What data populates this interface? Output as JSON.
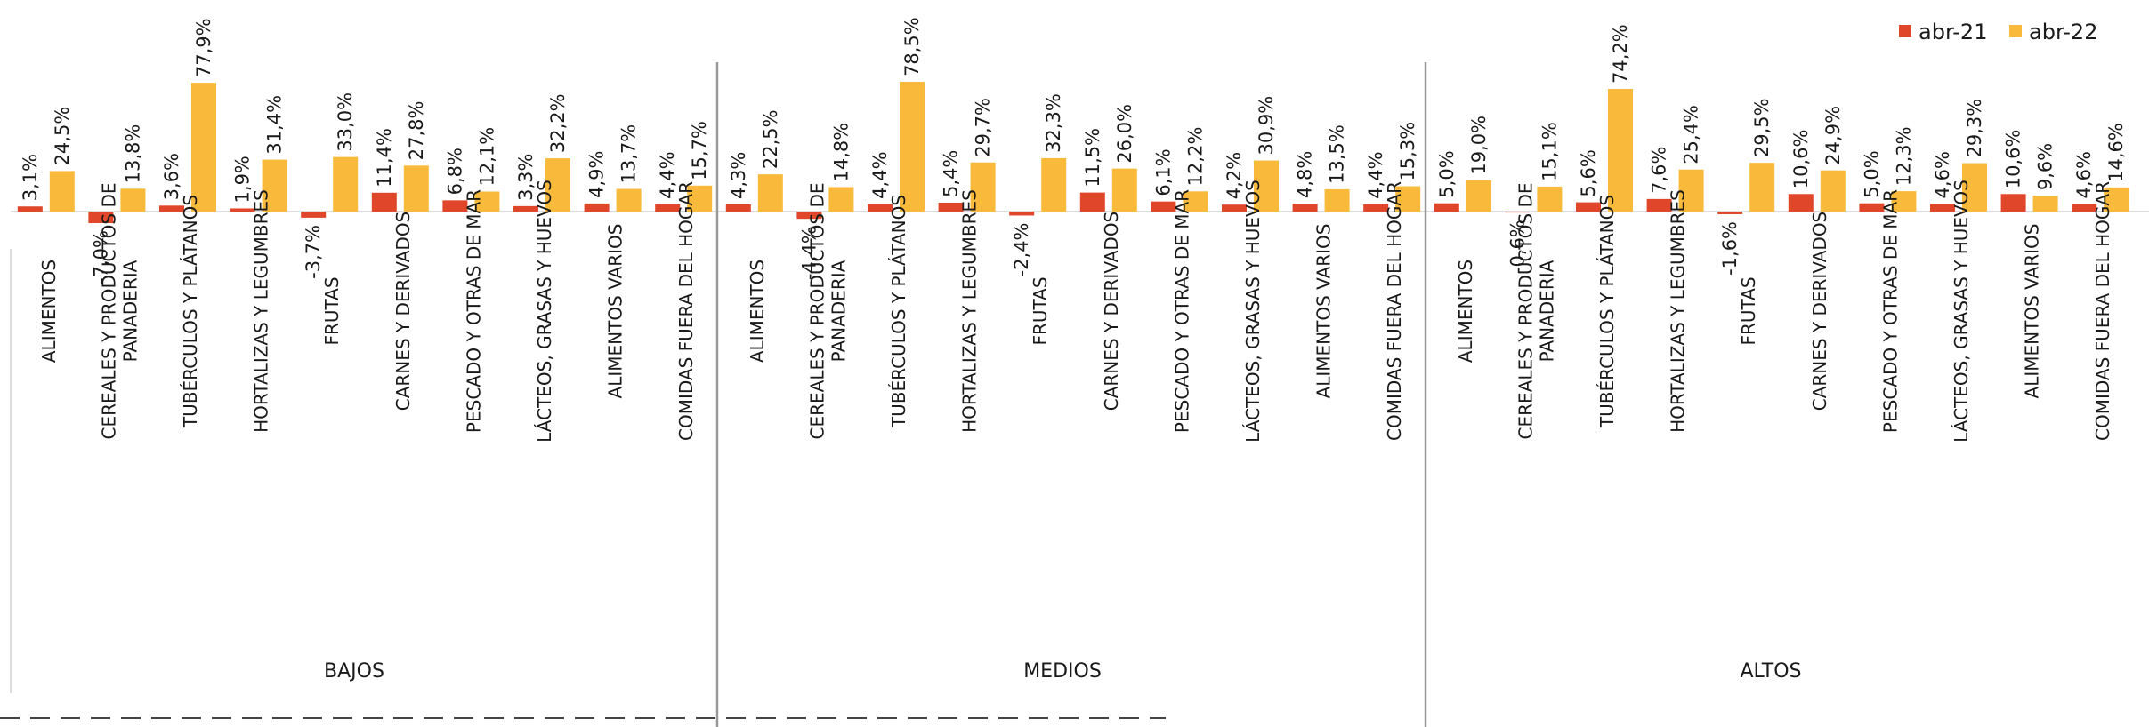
{
  "chart_data": {
    "type": "bar",
    "legend_position": "top-right",
    "grid": false,
    "ylim": [
      -10,
      80
    ],
    "colors": {
      "abr-21": "#E0472A",
      "abr-22": "#F9B93A"
    },
    "series_names": [
      "abr-21",
      "abr-22"
    ],
    "groups": [
      {
        "name": "BAJOS",
        "categories": [
          "ALIMENTOS",
          "CEREALES Y PRODUCTOS DE PANADERIA",
          "TUBÉRCULOS Y PLÁTANOS",
          "HORTALIZAS Y LEGUMBRES",
          "FRUTAS",
          "CARNES Y DERIVADOS",
          "PESCADO Y OTRAS DE MAR",
          "LÁCTEOS, GRASAS Y HUEVOS",
          "ALIMENTOS VARIOS",
          "COMIDAS FUERA DEL HOGAR"
        ],
        "series": [
          {
            "name": "abr-21",
            "values": [
              3.1,
              -7.0,
              3.6,
              1.9,
              -3.7,
              11.4,
              6.8,
              3.3,
              4.9,
              4.4
            ],
            "labels": [
              "3,1%",
              "-7,0%",
              "3,6%",
              "1,9%",
              "-3,7%",
              "11,4%",
              "6,8%",
              "3,3%",
              "4,9%",
              "4,4%"
            ]
          },
          {
            "name": "abr-22",
            "values": [
              24.5,
              13.8,
              77.9,
              31.4,
              33.0,
              27.8,
              12.1,
              32.2,
              13.7,
              15.7
            ],
            "labels": [
              "24,5%",
              "13,8%",
              "77,9%",
              "31,4%",
              "33,0%",
              "27,8%",
              "12,1%",
              "32,2%",
              "13,7%",
              "15,7%"
            ]
          }
        ]
      },
      {
        "name": "MEDIOS",
        "categories": [
          "ALIMENTOS",
          "CEREALES Y PRODUCTOS DE PANADERIA",
          "TUBÉRCULOS Y PLÁTANOS",
          "HORTALIZAS Y LEGUMBRES",
          "FRUTAS",
          "CARNES Y DERIVADOS",
          "PESCADO Y OTRAS DE MAR",
          "LÁCTEOS, GRASAS Y HUEVOS",
          "ALIMENTOS VARIOS",
          "COMIDAS FUERA DEL HOGAR"
        ],
        "series": [
          {
            "name": "abr-21",
            "values": [
              4.3,
              -4.4,
              4.4,
              5.4,
              -2.4,
              11.5,
              6.1,
              4.2,
              4.8,
              4.4
            ],
            "labels": [
              "4,3%",
              "-4,4%",
              "4,4%",
              "5,4%",
              "-2,4%",
              "11,5%",
              "6,1%",
              "4,2%",
              "4,8%",
              "4,4%"
            ]
          },
          {
            "name": "abr-22",
            "values": [
              22.5,
              14.8,
              78.5,
              29.7,
              32.3,
              26.0,
              12.2,
              30.9,
              13.5,
              15.3
            ],
            "labels": [
              "22,5%",
              "14,8%",
              "78,5%",
              "29,7%",
              "32,3%",
              "26,0%",
              "12,2%",
              "30,9%",
              "13,5%",
              "15,3%"
            ]
          }
        ]
      },
      {
        "name": "ALTOS",
        "categories": [
          "ALIMENTOS",
          "CEREALES Y PRODUCTOS DE PANADERIA",
          "TUBÉRCULOS Y PLÁTANOS",
          "HORTALIZAS Y LEGUMBRES",
          "FRUTAS",
          "CARNES Y DERIVADOS",
          "PESCADO Y OTRAS DE MAR",
          "LÁCTEOS, GRASAS Y HUEVOS",
          "ALIMENTOS VARIOS",
          "COMIDAS FUERA DEL HOGAR"
        ],
        "series": [
          {
            "name": "abr-21",
            "values": [
              5.0,
              -0.6,
              5.6,
              7.6,
              -1.6,
              10.6,
              5.0,
              4.6,
              10.6,
              4.6
            ],
            "labels": [
              "5,0%",
              "-0,6%",
              "5,6%",
              "7,6%",
              "-1,6%",
              "10,6%",
              "5,0%",
              "4,6%",
              "10,6%",
              "4,6%"
            ]
          },
          {
            "name": "abr-22",
            "values": [
              19.0,
              15.1,
              74.2,
              25.4,
              29.5,
              24.9,
              12.3,
              29.3,
              9.6,
              14.6
            ],
            "labels": [
              "19,0%",
              "15,1%",
              "74,2%",
              "25,4%",
              "29,5%",
              "24,9%",
              "12,3%",
              "29,3%",
              "9,6%",
              "14,6%"
            ]
          }
        ]
      }
    ]
  }
}
